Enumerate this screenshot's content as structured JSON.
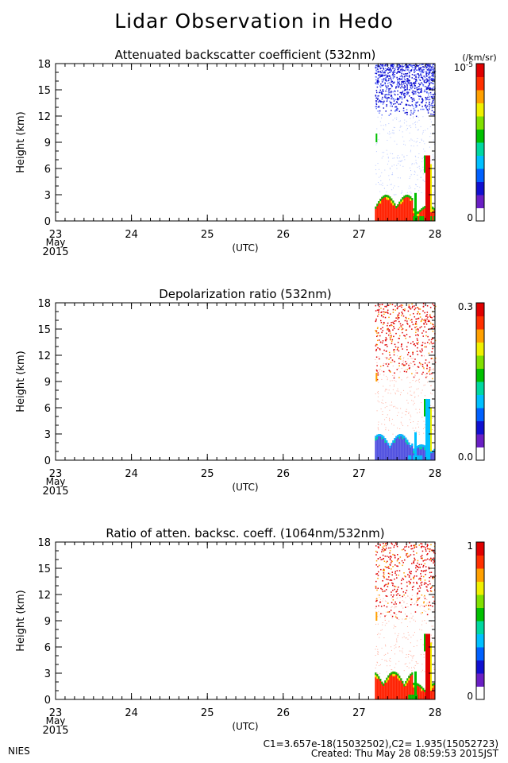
{
  "title": "Lidar Observation in Hedo",
  "panels": [
    {
      "title": "Attenuated backscatter coefficient (532nm)",
      "colorbar": {
        "unit": "(/km/sr)",
        "top_label": "10",
        "top_label_sup": "-5",
        "bottom_label": "0"
      }
    },
    {
      "title": "Depolarization ratio (532nm)",
      "colorbar": {
        "unit": "",
        "top_label": "0.3",
        "top_label_sup": "",
        "bottom_label": "0.0"
      }
    },
    {
      "title": "Ratio of atten. backsc. coeff. (1064nm/532nm)",
      "colorbar": {
        "unit": "",
        "top_label": "1",
        "top_label_sup": "",
        "bottom_label": "0"
      }
    }
  ],
  "axes": {
    "ylabel": "Height (km)",
    "yticks": [
      "0",
      "3",
      "6",
      "9",
      "12",
      "15",
      "18"
    ],
    "xticks": [
      "23",
      "24",
      "25",
      "26",
      "27",
      "28"
    ],
    "x_month": "May",
    "x_year": "2015",
    "x_unit": "(UTC)"
  },
  "footer": {
    "org": "NIES",
    "calibration": "C1=3.657e-18(15032502),C2= 1.935(15052723)",
    "created": "Created: Thu May 28 08:59:53 2015JST"
  },
  "colors": {
    "scale": [
      "#ffffff",
      "#6a1fc4",
      "#1010d0",
      "#0060ff",
      "#00c0ff",
      "#00d8a0",
      "#00c000",
      "#80e000",
      "#f0f000",
      "#ffa000",
      "#ff3000",
      "#e00000"
    ]
  },
  "chart_data": [
    {
      "type": "heatmap",
      "title": "Attenuated backscatter coefficient (532nm)",
      "xlabel": "(UTC)",
      "ylabel": "Height (km)",
      "xlim": [
        "2015-05-23",
        "2015-05-28"
      ],
      "ylim": [
        0,
        18
      ],
      "colorbar_range": [
        0,
        1e-05
      ],
      "colorbar_unit": "/km/sr",
      "data_start": "2015-05-27T05:00",
      "features": {
        "boundary_layer_top_km": 3.0,
        "sparse_high_signal_km": [
          12,
          18
        ],
        "cloud_near_end_km": [
          0,
          7.5
        ]
      }
    },
    {
      "type": "heatmap",
      "title": "Depolarization ratio (532nm)",
      "xlabel": "(UTC)",
      "ylabel": "Height (km)",
      "xlim": [
        "2015-05-23",
        "2015-05-28"
      ],
      "ylim": [
        0,
        18
      ],
      "colorbar_range": [
        0.0,
        0.3
      ],
      "data_start": "2015-05-27T05:00",
      "features": {
        "boundary_layer_top_km": 3.0,
        "sparse_high_signal_km": [
          9,
          18
        ],
        "cloud_near_end_km": [
          0,
          7.0
        ]
      }
    },
    {
      "type": "heatmap",
      "title": "Ratio of atten. backsc. coeff. (1064nm/532nm)",
      "xlabel": "(UTC)",
      "ylabel": "Height (km)",
      "xlim": [
        "2015-05-23",
        "2015-05-28"
      ],
      "ylim": [
        0,
        18
      ],
      "colorbar_range": [
        0,
        1
      ],
      "data_start": "2015-05-27T05:00",
      "features": {
        "boundary_layer_top_km": 3.2,
        "sparse_high_signal_km": [
          9,
          18
        ],
        "cloud_near_end_km": [
          0,
          7.5
        ]
      }
    }
  ]
}
